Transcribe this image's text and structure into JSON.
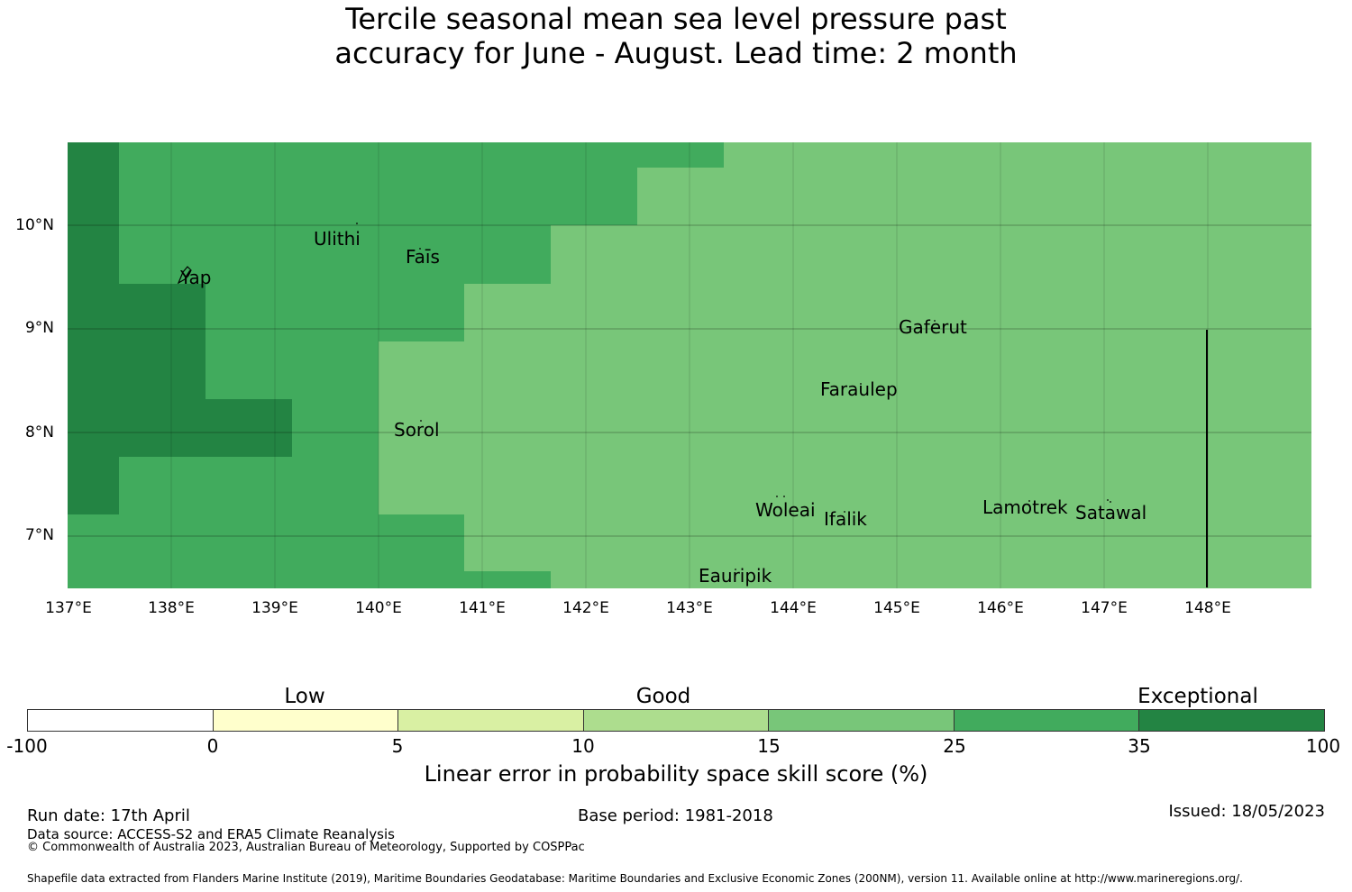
{
  "title": {
    "line1": "Tercile seasonal mean sea level pressure past",
    "line2": "accuracy for June - August. Lead time: 2 month"
  },
  "map": {
    "lon_range": [
      137.0,
      149.0
    ],
    "lat_range": [
      6.5,
      10.8
    ],
    "lon_ticks": [
      "137°E",
      "138°E",
      "139°E",
      "140°E",
      "141°E",
      "142°E",
      "143°E",
      "144°E",
      "145°E",
      "146°E",
      "147°E",
      "148°E"
    ],
    "lat_ticks": [
      "10°N",
      "9°N",
      "8°N",
      "7°N"
    ],
    "cell_colors": {
      "exceptional": "#238443",
      "high_good": "#41ab5d",
      "good": "#78c679"
    },
    "places": [
      {
        "name": "Ulithi",
        "lon": 139.8,
        "lat": 9.9
      },
      {
        "name": "Faīs",
        "lon": 140.5,
        "lat": 9.7
      },
      {
        "name": "Yap",
        "lon": 138.2,
        "lat": 9.5
      },
      {
        "name": "Gaferut",
        "lon": 145.4,
        "lat": 9.0
      },
      {
        "name": "Faraulep",
        "lon": 144.7,
        "lat": 8.4
      },
      {
        "name": "Sorol",
        "lon": 140.4,
        "lat": 8.0
      },
      {
        "name": "Woleai",
        "lon": 143.9,
        "lat": 7.3
      },
      {
        "name": "Ifalik",
        "lon": 144.5,
        "lat": 7.2
      },
      {
        "name": "Lamotrek",
        "lon": 146.3,
        "lat": 7.3
      },
      {
        "name": "Satawal",
        "lon": 147.1,
        "lat": 7.2
      },
      {
        "name": "Eauripik",
        "lon": 143.4,
        "lat": 6.6
      }
    ]
  },
  "colorbar": {
    "categories": [
      "Low",
      "Good",
      "Exceptional"
    ],
    "ticks": [
      "-100",
      "0",
      "5",
      "10",
      "15",
      "25",
      "35",
      "100"
    ],
    "colors": [
      "#ffffff",
      "#ffffcc",
      "#d9f0a3",
      "#addd8e",
      "#78c679",
      "#41ab5d",
      "#238443"
    ],
    "label": "Linear error in probability space skill score (%)"
  },
  "footer": {
    "run_date": "Run date: 17th April",
    "data_source": "Data source: ACCESS-S2 and ERA5 Climate Reanalysis",
    "copyright": "© Commonwealth of Australia 2023, Australian Bureau of Meteorology, Supported by COSPPac",
    "base_period": "Base period: 1981-2018",
    "issued": "Issued: 18/05/2023",
    "shapefile": "Shapefile data extracted from Flanders Marine Institute (2019), Maritime Boundaries Geodatabase: Maritime Boundaries and Exclusive Economic Zones (200NM), version 11. Available online at http://www.marineregions.org/."
  }
}
